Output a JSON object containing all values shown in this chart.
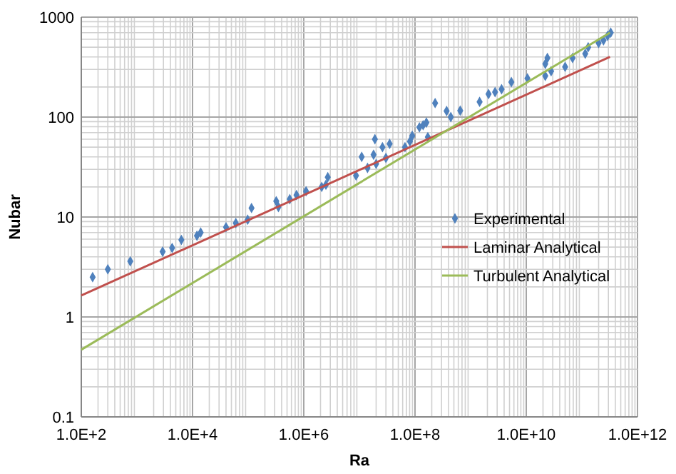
{
  "chart_data": {
    "type": "scatter",
    "xlabel": "Ra",
    "ylabel": "Nubar",
    "log": "xy",
    "grid": true,
    "legend": "right",
    "marker": "diamond",
    "xlim": [
      100.0,
      1000000000000.0
    ],
    "ylim": [
      0.1,
      1000
    ],
    "xticks": [
      {
        "value": 100.0,
        "label": "1.0E+2"
      },
      {
        "value": 10000.0,
        "label": "1.0E+4"
      },
      {
        "value": 1000000.0,
        "label": "1.0E+6"
      },
      {
        "value": 100000000.0,
        "label": "1.0E+8"
      },
      {
        "value": 10000000000.0,
        "label": "1.0E+10"
      },
      {
        "value": 1000000000000.0,
        "label": "1.0E+12"
      }
    ],
    "yticks": [
      0.1,
      1,
      10,
      100,
      1000
    ],
    "series": [
      {
        "name": "Experimental",
        "color": "#4f81bd",
        "x": [
          160.0,
          300.0,
          760.0,
          2900.0,
          4300.0,
          6300.0,
          12000.0,
          14000.0,
          40000.0,
          60000.0,
          98000.0,
          115000.0,
          320000.0,
          350000.0,
          560000.0,
          740000.0,
          1100000.0,
          2100000.0,
          2500000.0,
          2700000.0,
          8700000.0,
          11000000.0,
          14000000.0,
          18000000.0,
          19000000.0,
          20000000.0,
          26000000.0,
          30000000.0,
          35000000.0,
          66000000.0,
          81000000.0,
          89000000.0,
          120000000.0,
          140000000.0,
          160000000.0,
          170000000.0,
          230000000.0,
          370000000.0,
          440000000.0,
          650000000.0,
          1450000000.0,
          2100000000.0,
          2750000000.0,
          3600000000.0,
          5400000000.0,
          10500000000.0,
          22000000000.0,
          24000000000.0,
          22000000000.0,
          28000000000.0,
          50000000000.0,
          68000000000.0,
          115000000000.0,
          130000000000.0,
          200000000000.0,
          245000000000.0,
          290000000000.0,
          330000000000.0
        ],
        "values": [
          2.5,
          3.0,
          3.6,
          4.5,
          4.9,
          5.9,
          6.5,
          7.0,
          7.9,
          8.7,
          9.4,
          12.3,
          14.4,
          12.6,
          15.1,
          16.6,
          18.1,
          20,
          21,
          25,
          26,
          40,
          31,
          42,
          60,
          34,
          50,
          39,
          54,
          50,
          57,
          65,
          79,
          83,
          88,
          63,
          138,
          115,
          100,
          116,
          142,
          170,
          178,
          190,
          224,
          244,
          340,
          390,
          258,
          288,
          318,
          390,
          430,
          500,
          550,
          585,
          650,
          700
        ]
      },
      {
        "name": "Laminar Analytical",
        "color": "#c0504d",
        "type": "line",
        "marker": "none",
        "x": [
          100.0,
          320000000000.0
        ],
        "values": [
          1.64,
          400
        ]
      },
      {
        "name": "Turbulent Analytical",
        "color": "#9bbb59",
        "type": "line",
        "marker": "none",
        "x": [
          100.0,
          320000000000.0
        ],
        "values": [
          0.47,
          700
        ]
      }
    ]
  }
}
